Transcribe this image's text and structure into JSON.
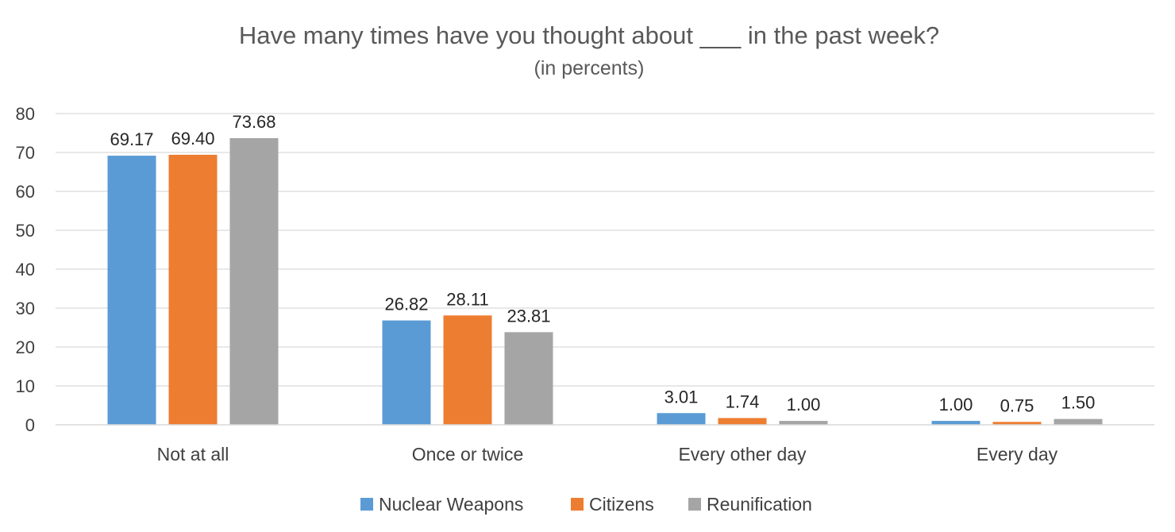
{
  "chart_data": {
    "type": "bar",
    "title": "Have many times have you thought about ___ in the past week?",
    "subtitle": "(in percents)",
    "xlabel": "",
    "ylabel": "",
    "ylim": [
      0,
      80
    ],
    "yticks": [
      "0",
      "10",
      "20",
      "30",
      "40",
      "50",
      "60",
      "70",
      "80"
    ],
    "grid": true,
    "legend_position": "bottom",
    "categories": [
      "Not at all",
      "Once or twice",
      "Every other day",
      "Every day"
    ],
    "series": [
      {
        "name": "Nuclear Weapons",
        "color": "#5B9BD5",
        "values": [
          69.17,
          26.82,
          3.01,
          1.0
        ],
        "labels": [
          "69.17",
          "26.82",
          "3.01",
          "1.00"
        ]
      },
      {
        "name": "Citizens",
        "color": "#ED7D31",
        "values": [
          69.4,
          28.11,
          1.74,
          0.75
        ],
        "labels": [
          "69.40",
          "28.11",
          "1.74",
          "0.75"
        ]
      },
      {
        "name": "Reunification",
        "color": "#A5A5A5",
        "values": [
          73.68,
          23.81,
          1.0,
          1.5
        ],
        "labels": [
          "73.68",
          "23.81",
          "1.00",
          "1.50"
        ]
      }
    ],
    "gridline_color": "#D9D9D9"
  }
}
